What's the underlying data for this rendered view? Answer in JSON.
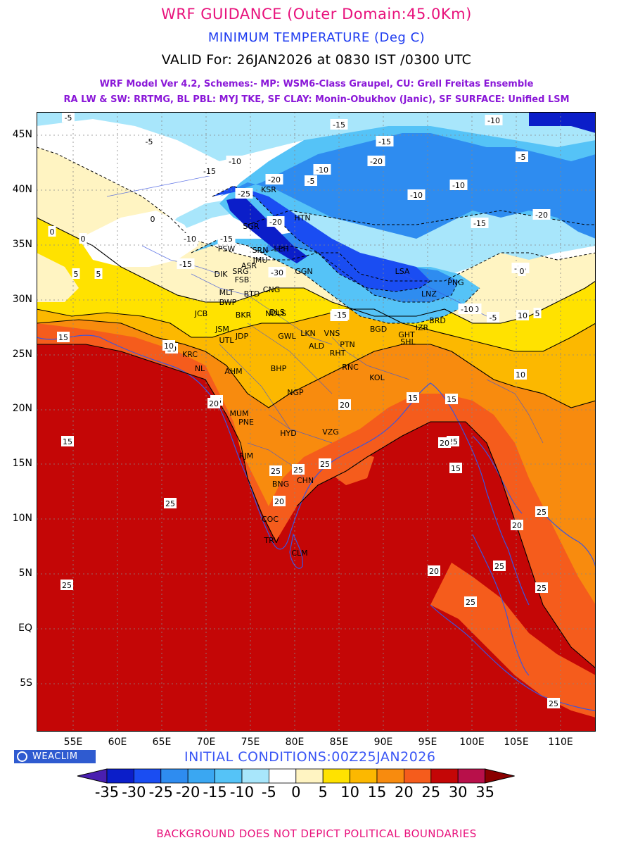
{
  "header": {
    "title": "WRF GUIDANCE (Outer Domain:45.0Km)",
    "parameter": "MINIMUM TEMPERATURE (Deg C)",
    "valid": "VALID For: 26JAN2026 at 0830 IST /0300 UTC",
    "model_line1": "WRF Model Ver 4.2, Schemes:- MP: WSM6-Class Graupel, CU: Grell Freitas Ensemble",
    "model_line2": "RA LW & SW: RRTMG, BL PBL: MYJ TKE, SF CLAY: Monin-Obukhov (Janic), SF SURFACE: Unified LSM"
  },
  "map": {
    "lat_labels": [
      "45N",
      "40N",
      "35N",
      "30N",
      "25N",
      "20N",
      "15N",
      "10N",
      "5N",
      "EQ",
      "5S"
    ],
    "lon_labels": [
      "55E",
      "60E",
      "65E",
      "70E",
      "75E",
      "80E",
      "85E",
      "90E",
      "95E",
      "100E",
      "105E",
      "110E"
    ],
    "contour_labels": [
      "-5",
      "-5",
      "-10",
      "-15",
      "-20",
      "-5",
      "-10",
      "-15",
      "-20",
      "-15",
      "-10",
      "-5",
      "-25",
      "-20",
      "-15",
      "-10",
      "-15",
      "-10",
      "-10",
      "-15",
      "-20",
      "-30",
      "-15",
      "-10",
      "0",
      "0",
      "0",
      "5",
      "10",
      "15",
      "15",
      "15",
      "20",
      "25",
      "25",
      "25",
      "25",
      "20",
      "20",
      "25",
      "15",
      "20",
      "15",
      "25",
      "25",
      "25",
      "20",
      "25",
      "10",
      "10",
      "5",
      "-5",
      "-10",
      "-15",
      "-15",
      "0",
      "5",
      "10",
      "15",
      "20",
      "25",
      "25"
    ],
    "stations": [
      "HTN",
      "KSR",
      "SGR",
      "LEH",
      "PSW",
      "SRN",
      "JMU",
      "DIK",
      "SRG",
      "FSB",
      "ASR",
      "MLT",
      "BWP",
      "BTD",
      "CNG",
      "DLS",
      "NDLS",
      "GGN",
      "JCB",
      "BKR",
      "JSM",
      "UTL",
      "JDP",
      "GWL",
      "LKN",
      "ALD",
      "PTN",
      "RHT",
      "VNS",
      "KRC",
      "NL",
      "AHM",
      "BHP",
      "RNC",
      "KOL",
      "NGP",
      "MUM",
      "PNE",
      "HYD",
      "VZG",
      "RJM",
      "BNG",
      "CHN",
      "COC",
      "TRV",
      "CLM",
      "LSA",
      "LNZ",
      "PNG",
      "BGD",
      "GHT",
      "SHL",
      "IZR",
      "BRD"
    ],
    "note": "",
    "colors": {
      "deep_violet": "#4a1fb0",
      "deep_blue": "#0b1ec9",
      "blue": "#1a4df2",
      "mid_blue": "#2e8cf0",
      "light_blue": "#55c3f7",
      "pale_blue": "#a8e6fb",
      "white": "#ffffff",
      "pale_yellow": "#fff4c2",
      "yellow": "#ffe200",
      "amber": "#fcb800",
      "orange": "#f88b0e",
      "deep_orange": "#f55c1c",
      "red": "#c40606",
      "crimson": "#b8104a",
      "maroon": "#8a0000"
    }
  },
  "footer": {
    "brand": "WEACLIM",
    "initial_conditions": "INITIAL CONDITIONS:00Z25JAN2026",
    "disclaimer": "BACKGROUND DOES NOT DEPICT POLITICAL BOUNDARIES"
  },
  "colorbar": {
    "labels": [
      "-35",
      "-30",
      "-25",
      "-20",
      "-15",
      "-10",
      "-5",
      "0",
      "5",
      "10",
      "15",
      "20",
      "25",
      "30",
      "35"
    ],
    "colors": [
      "#4a1fb0",
      "#0b1ec9",
      "#1a4df2",
      "#2e8cf0",
      "#3aa7f2",
      "#55c3f7",
      "#a8e6fb",
      "#ffffff",
      "#fff4c2",
      "#ffe200",
      "#fcb800",
      "#f88b0e",
      "#f55c1c",
      "#c40606",
      "#b8104a",
      "#8a0000"
    ]
  }
}
